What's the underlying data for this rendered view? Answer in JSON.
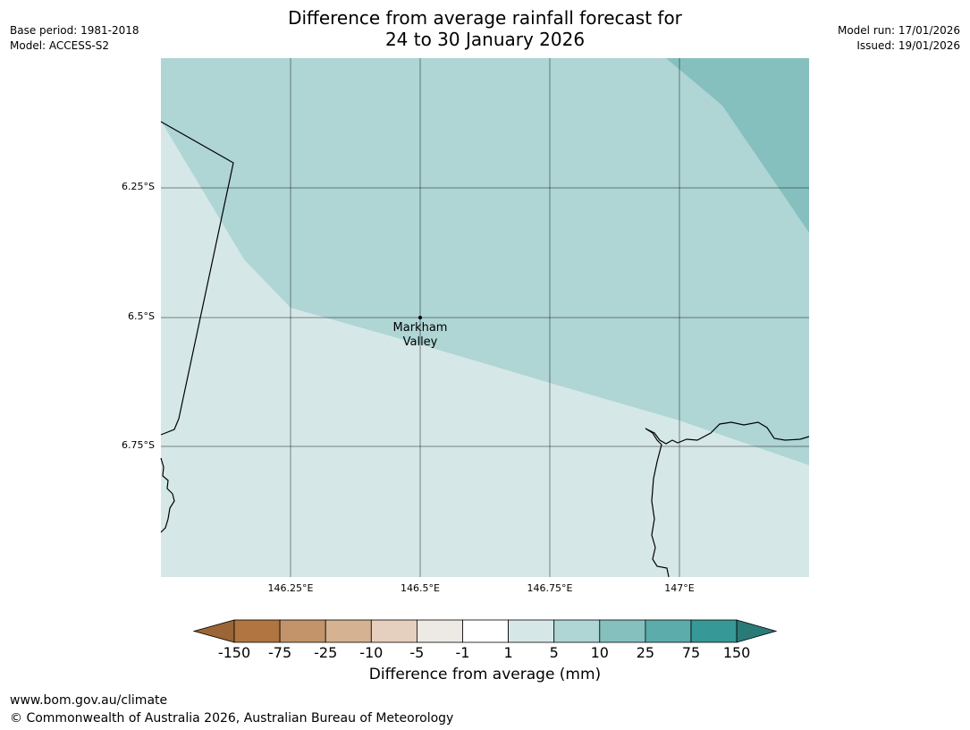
{
  "title": {
    "line1": "Difference from average rainfall forecast for",
    "line2": "24 to 30 January 2026"
  },
  "meta": {
    "base_period": "Base period: 1981-2018",
    "model": "Model: ACCESS-S2",
    "model_run": "Model run: 17/01/2026",
    "issued": "Issued: 19/01/2026"
  },
  "map": {
    "latitude_labels": [
      "6.25°S",
      "6.5°S",
      "6.75°S"
    ],
    "longitude_labels": [
      "146.25°E",
      "146.5°E",
      "146.75°E",
      "147°E"
    ],
    "place": {
      "line1": "Markham",
      "line2": "Valley"
    }
  },
  "colorbar": {
    "tick_labels": [
      "-150",
      "-75",
      "-25",
      "-10",
      "-5",
      "-1",
      "1",
      "5",
      "10",
      "25",
      "75",
      "150"
    ],
    "colors": [
      "#9c6535",
      "#b07540",
      "#c3936a",
      "#d5b292",
      "#e5cfbe",
      "#ede9e5",
      "#ffffff",
      "#d5e8e7",
      "#afd5d5",
      "#85c0bf",
      "#5bacab",
      "#369897",
      "#2a7a78"
    ],
    "title": "Difference from average (mm)"
  },
  "footer": {
    "url": "www.bom.gov.au/climate",
    "copyright": "© Commonwealth of Australia 2026, Australian Bureau of Meteorology"
  }
}
